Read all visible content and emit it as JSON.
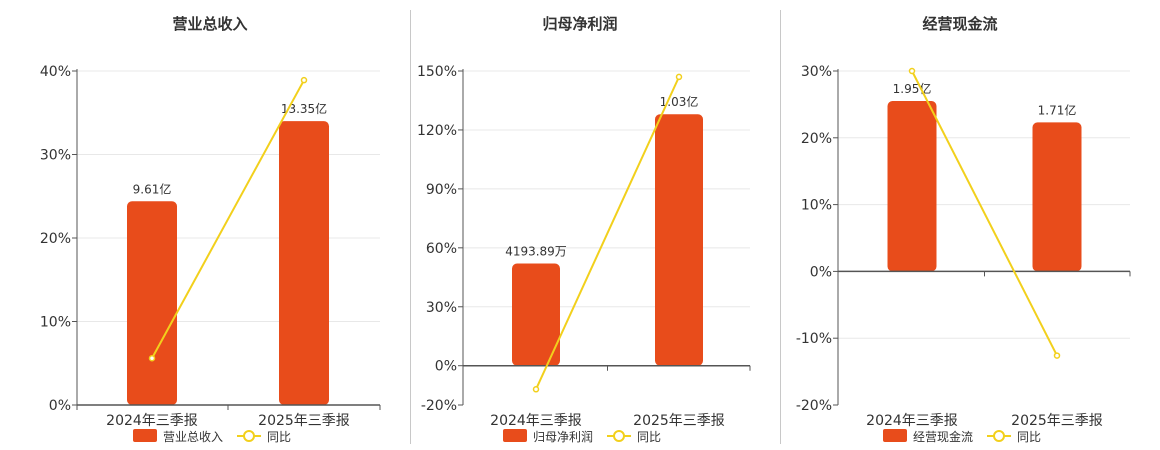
{
  "colors": {
    "bar": "#e84c1b",
    "line": "#f2d01c",
    "grid": "#e8e8e8",
    "axis": "#555555",
    "divider": "#c8c8c8"
  },
  "chart_data": [
    {
      "type": "bar",
      "title": "营业总收入",
      "categories": [
        "2024年三季报",
        "2025年三季报"
      ],
      "bar_values": [
        24.4,
        34.0
      ],
      "bar_labels": [
        "9.61亿",
        "13.35亿"
      ],
      "line_values": [
        5.6,
        38.9
      ],
      "ylim": [
        0,
        40
      ],
      "yticks": [
        "0%",
        "10%",
        "20%",
        "30%",
        "40%"
      ],
      "ytick_values": [
        0,
        10,
        20,
        30,
        40
      ],
      "legend": [
        "营业总收入",
        "同比"
      ]
    },
    {
      "type": "bar",
      "title": "归母净利润",
      "categories": [
        "2024年三季报",
        "2025年三季报"
      ],
      "bar_values": [
        52,
        128
      ],
      "bar_labels": [
        "4193.89万",
        "1.03亿"
      ],
      "line_values": [
        -12,
        147
      ],
      "ylim": [
        -20,
        150
      ],
      "yticks": [
        "-20%",
        "0%",
        "30%",
        "60%",
        "90%",
        "120%",
        "150%"
      ],
      "ytick_values": [
        -20,
        0,
        30,
        60,
        90,
        120,
        150
      ],
      "legend": [
        "归母净利润",
        "同比"
      ]
    },
    {
      "type": "bar",
      "title": "经营现金流",
      "categories": [
        "2024年三季报",
        "2025年三季报"
      ],
      "bar_values": [
        25.5,
        22.3
      ],
      "bar_labels": [
        "1.95亿",
        "1.71亿"
      ],
      "line_values": [
        30,
        -12.6
      ],
      "ylim": [
        -20,
        30
      ],
      "yticks": [
        "-20%",
        "-10%",
        "0%",
        "10%",
        "20%",
        "30%"
      ],
      "ytick_values": [
        -20,
        -10,
        0,
        10,
        20,
        30
      ],
      "legend": [
        "经营现金流",
        "同比"
      ]
    }
  ]
}
